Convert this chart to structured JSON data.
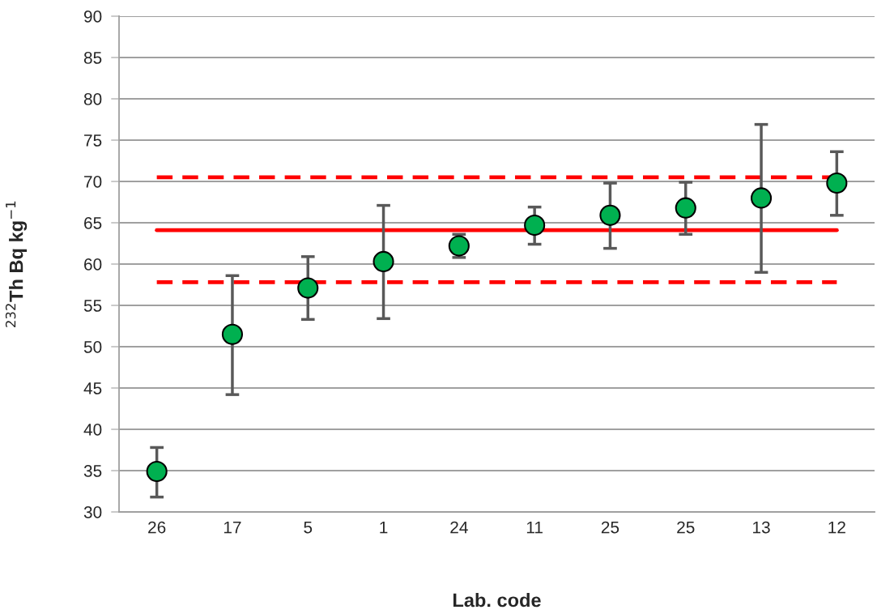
{
  "chart_data": {
    "type": "scatter",
    "xlabel": "Lab. code",
    "ylabel": "$^{232}$Th Bq kg$^{−1}$",
    "categories": [
      "26",
      "17",
      "5",
      "1",
      "24",
      "11",
      "25",
      "25",
      "13",
      "12"
    ],
    "series": [
      {
        "color": "#00b050",
        "values": [
          34.9,
          51.5,
          57.1,
          60.3,
          62.2,
          64.7,
          65.9,
          66.8,
          68.0,
          69.8
        ],
        "errors": [
          [
            31.8,
            37.8
          ],
          [
            44.2,
            58.6
          ],
          [
            53.3,
            60.9
          ],
          [
            53.4,
            67.1
          ],
          [
            60.8,
            63.6
          ],
          [
            62.4,
            66.9
          ],
          [
            61.9,
            69.8
          ],
          [
            63.6,
            69.9
          ],
          [
            59.0,
            76.9
          ],
          [
            65.9,
            73.6
          ]
        ]
      }
    ],
    "ylim": [
      30,
      90
    ],
    "yticks": [
      30,
      35,
      40,
      45,
      50,
      55,
      60,
      65,
      70,
      75,
      80,
      85,
      90
    ],
    "ref_lines": [
      {
        "axis": "y",
        "value": 64.1,
        "color": "#ff0000",
        "line_style": "solid"
      },
      {
        "axis": "y",
        "value": 70.5,
        "color": "#ff0000",
        "line_style": "dashed"
      },
      {
        "axis": "y",
        "value": 57.8,
        "color": "#ff0000",
        "line_style": "dashed"
      }
    ],
    "grid": "y",
    "marker": "circle"
  }
}
